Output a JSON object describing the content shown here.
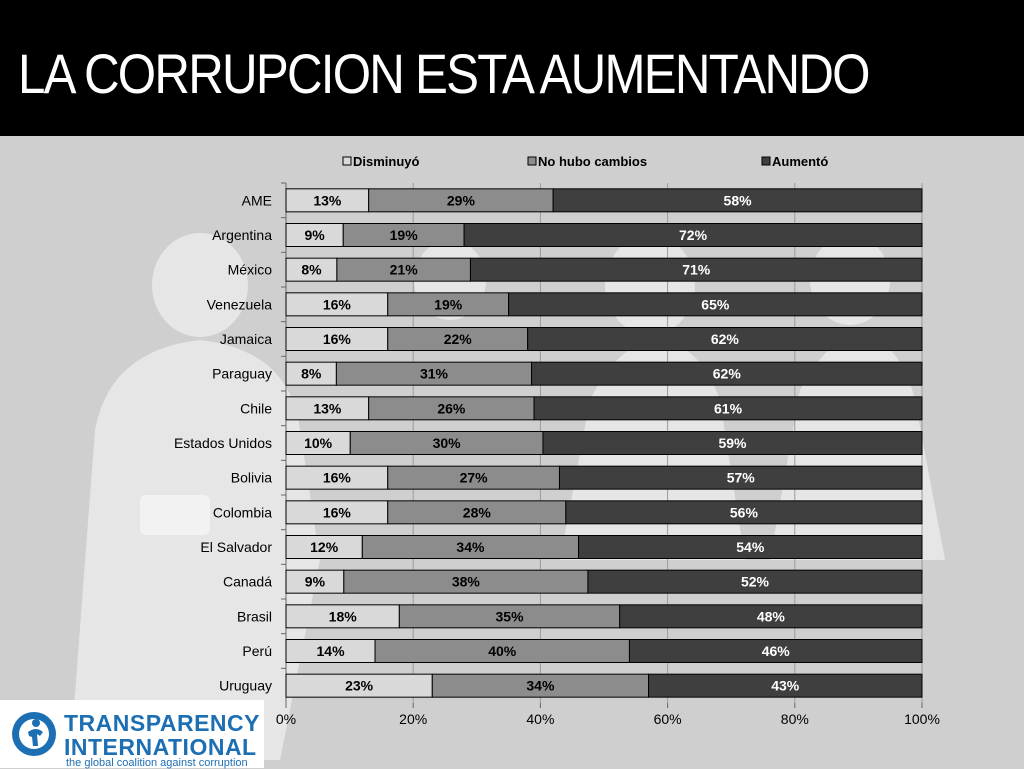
{
  "page": {
    "title": "LA CORRUPCION ESTA AUMENTANDO"
  },
  "logo": {
    "line1": "TRANSPARENCY",
    "line2": "INTERNATIONAL",
    "tagline": "the global coalition against corruption"
  },
  "colors": {
    "title_bg": "#000000",
    "slide_bg": "#cfcfcf",
    "series": [
      "#d9d9d9",
      "#8c8c8c",
      "#3f3f3f"
    ],
    "logo_blue": "#1d6fb3"
  },
  "chart_data": {
    "type": "bar",
    "orientation": "horizontal",
    "stacked": "percent",
    "title": "",
    "xlabel": "",
    "ylabel": "",
    "xlim": [
      0,
      100
    ],
    "x_ticks": [
      "0%",
      "20%",
      "40%",
      "60%",
      "80%",
      "100%"
    ],
    "legend_position": "top",
    "categories": [
      "AME",
      "Argentina",
      "México",
      "Venezuela",
      "Jamaica",
      "Paraguay",
      "Chile",
      "Estados Unidos",
      "Bolivia",
      "Colombia",
      "El Salvador",
      "Canadá",
      "Brasil",
      "Perú",
      "Uruguay"
    ],
    "series": [
      {
        "name": "Disminuyó",
        "values": [
          13,
          9,
          8,
          16,
          16,
          8,
          13,
          10,
          16,
          16,
          12,
          9,
          18,
          14,
          23
        ]
      },
      {
        "name": "No hubo cambios",
        "values": [
          29,
          19,
          21,
          19,
          22,
          31,
          26,
          30,
          27,
          28,
          34,
          38,
          35,
          40,
          34
        ]
      },
      {
        "name": "Aumentó",
        "values": [
          58,
          72,
          71,
          65,
          62,
          62,
          61,
          59,
          57,
          56,
          54,
          52,
          48,
          46,
          43
        ]
      }
    ]
  }
}
